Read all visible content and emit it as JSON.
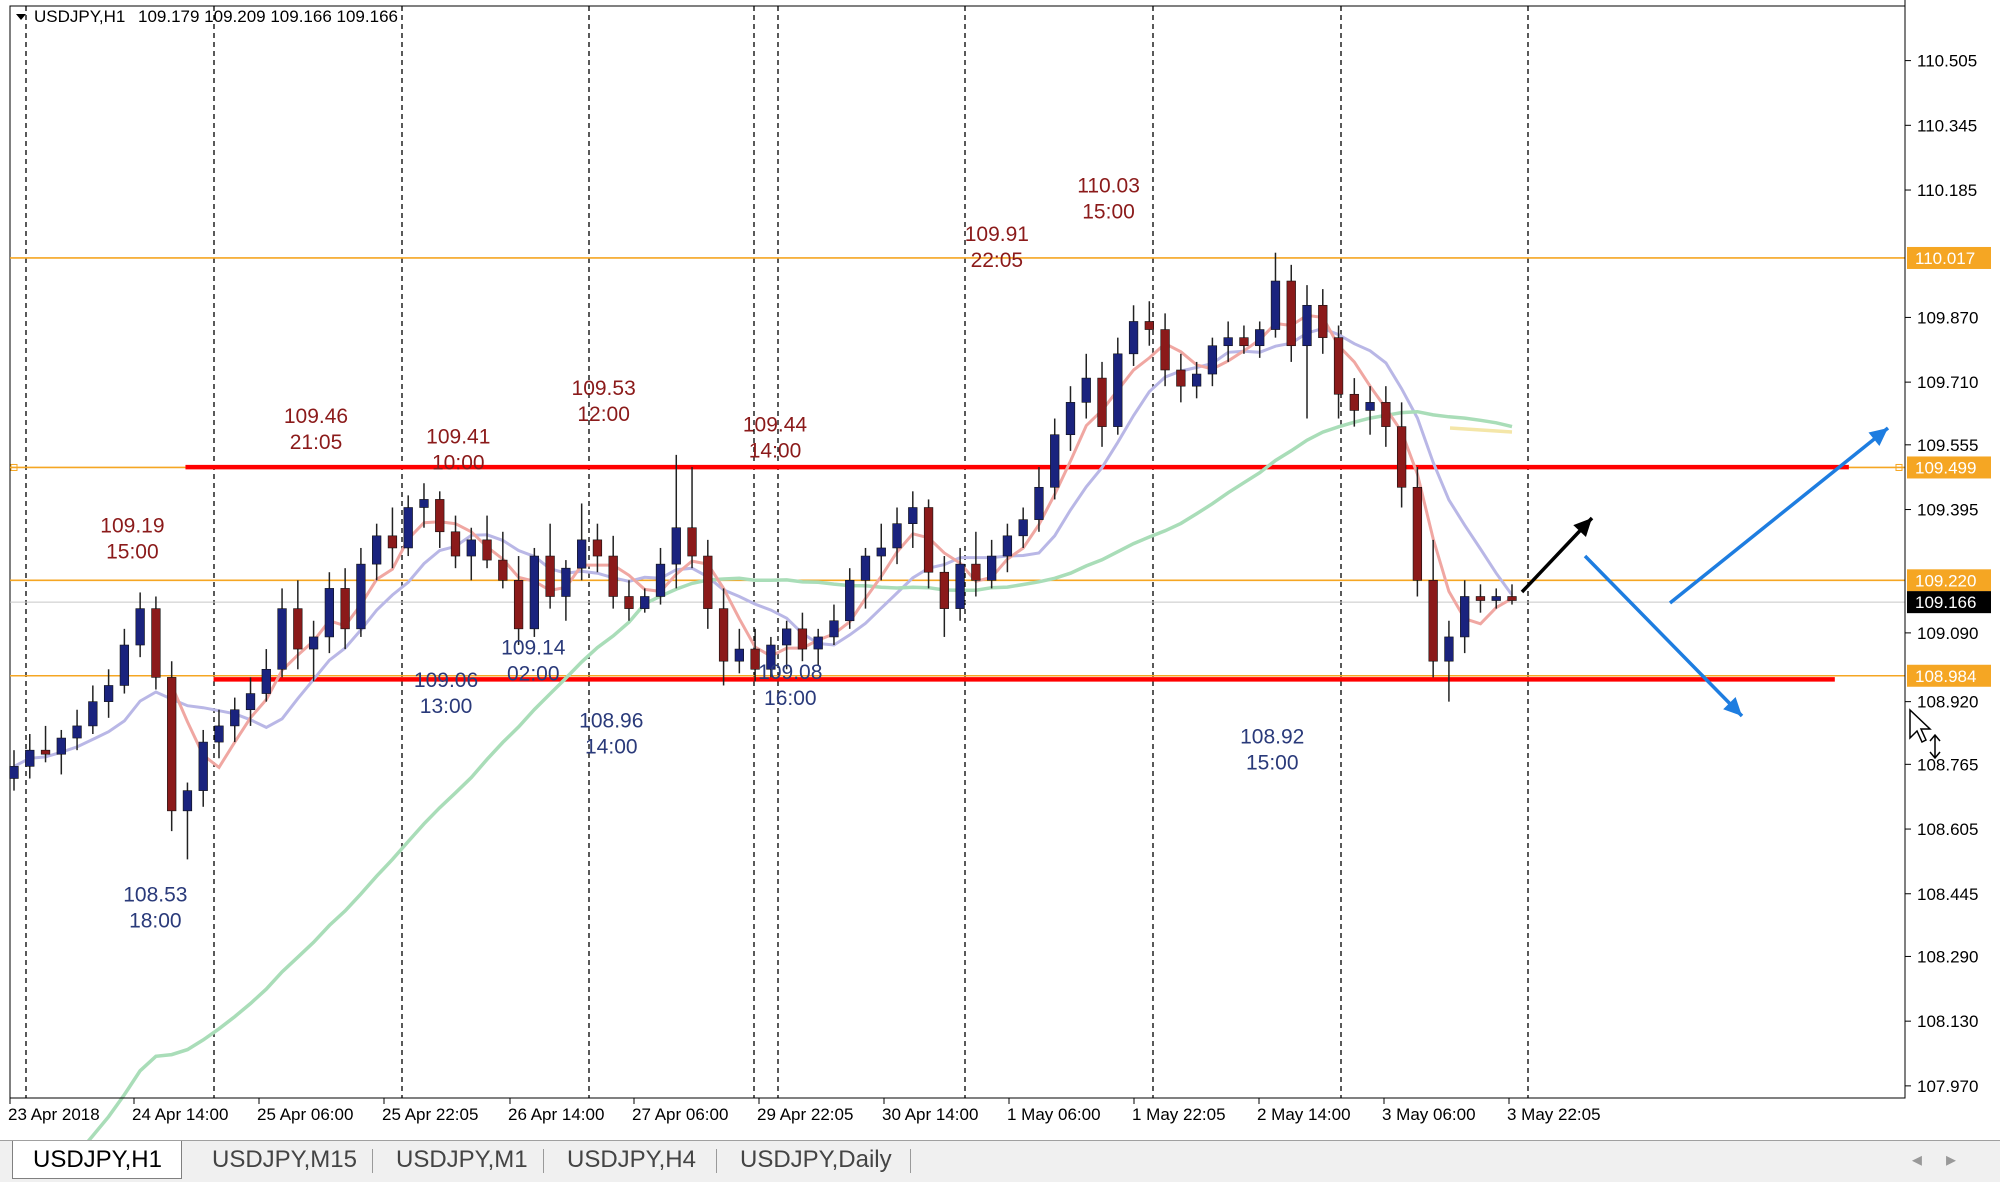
{
  "header": {
    "symbol": "USDJPY,H1",
    "ohlc": "109.179 109.209 109.166 109.166"
  },
  "tabs": [
    {
      "label": "USDJPY,H1",
      "active": true
    },
    {
      "label": "USDJPY,M15",
      "active": false
    },
    {
      "label": "USDJPY,M1",
      "active": false
    },
    {
      "label": "USDJPY,H4",
      "active": false
    },
    {
      "label": "USDJPY,Daily",
      "active": false
    }
  ],
  "colors": {
    "candle_up": "#1a237e",
    "candle_down": "#8b1a1a",
    "level_line": "#f5a623",
    "support_resistance": "#ff0000",
    "arrow_blue": "#1e7de0",
    "arrow_black": "#000000",
    "annotation_high": "#8b1a1a",
    "annotation_low": "#2a3a7a",
    "ma_fast": "#b9b7e6",
    "ma_slow": "#a9ddb8",
    "ma_red": "#f0a7a2",
    "ma_yellow": "#f4e6a8"
  },
  "chart_data": {
    "type": "candlestick",
    "symbol": "USDJPY",
    "timeframe": "H1",
    "ylim": [
      107.94,
      110.64
    ],
    "yticks": [
      110.505,
      110.345,
      110.185,
      109.87,
      109.71,
      109.555,
      109.395,
      109.09,
      108.92,
      108.765,
      108.605,
      108.445,
      108.29,
      108.13,
      107.97
    ],
    "xticks": [
      "23 Apr 2018",
      "24 Apr 14:00",
      "25 Apr 06:00",
      "25 Apr 22:05",
      "26 Apr 14:00",
      "27 Apr 06:00",
      "29 Apr 22:05",
      "30 Apr 14:00",
      "1 May 06:00",
      "1 May 22:05",
      "2 May 14:00",
      "3 May 06:00",
      "3 May 22:05"
    ],
    "horizontal_levels": [
      {
        "value": 110.017,
        "label": "110.017"
      },
      {
        "value": 109.499,
        "label": "109.499"
      },
      {
        "value": 109.22,
        "label": "109.220"
      },
      {
        "value": 108.984,
        "label": "108.984"
      }
    ],
    "current_price": {
      "value": 109.166,
      "label": "109.166"
    },
    "support_resistance": [
      {
        "value": 109.5,
        "from": 0.125,
        "to": 1.31
      },
      {
        "value": 108.975,
        "from": 0.145,
        "to": 1.3
      }
    ],
    "annotations": [
      {
        "type": "high",
        "price": "109.19",
        "time": "15:00",
        "x": 0.08,
        "y": 109.19
      },
      {
        "type": "low",
        "price": "108.53",
        "time": "18:00",
        "x": 0.095,
        "y": 108.53
      },
      {
        "type": "high",
        "price": "109.46",
        "time": "21:05",
        "x": 0.2,
        "y": 109.46
      },
      {
        "type": "high",
        "price": "109.41",
        "time": "10:00",
        "x": 0.293,
        "y": 109.41
      },
      {
        "type": "low",
        "price": "109.06",
        "time": "13:00",
        "x": 0.285,
        "y": 109.06
      },
      {
        "type": "low",
        "price": "109.14",
        "time": "02:00",
        "x": 0.342,
        "y": 109.14
      },
      {
        "type": "high",
        "price": "109.53",
        "time": "12:00",
        "x": 0.388,
        "y": 109.53
      },
      {
        "type": "low",
        "price": "108.96",
        "time": "14:00",
        "x": 0.393,
        "y": 108.96
      },
      {
        "type": "high",
        "price": "109.44",
        "time": "14:00",
        "x": 0.5,
        "y": 109.44
      },
      {
        "type": "low",
        "price": "109.08",
        "time": "16:00",
        "x": 0.51,
        "y": 109.08
      },
      {
        "type": "high",
        "price": "109.91",
        "time": "22:05",
        "x": 0.645,
        "y": 109.91
      },
      {
        "type": "high",
        "price": "110.03",
        "time": "15:00",
        "x": 0.718,
        "y": 110.03
      },
      {
        "type": "low",
        "price": "108.92",
        "time": "15:00",
        "x": 0.825,
        "y": 108.92
      }
    ],
    "candles": [
      [
        108.73,
        108.8,
        108.7,
        108.76
      ],
      [
        108.76,
        108.84,
        108.73,
        108.8
      ],
      [
        108.8,
        108.86,
        108.77,
        108.79
      ],
      [
        108.79,
        108.85,
        108.74,
        108.83
      ],
      [
        108.83,
        108.9,
        108.8,
        108.86
      ],
      [
        108.86,
        108.96,
        108.84,
        108.92
      ],
      [
        108.92,
        109.0,
        108.88,
        108.96
      ],
      [
        108.96,
        109.1,
        108.94,
        109.06
      ],
      [
        109.06,
        109.19,
        109.03,
        109.15
      ],
      [
        109.15,
        109.18,
        108.95,
        108.98
      ],
      [
        108.98,
        109.02,
        108.6,
        108.65
      ],
      [
        108.65,
        108.72,
        108.53,
        108.7
      ],
      [
        108.7,
        108.85,
        108.66,
        108.82
      ],
      [
        108.82,
        108.9,
        108.78,
        108.86
      ],
      [
        108.86,
        108.93,
        108.82,
        108.9
      ],
      [
        108.9,
        108.98,
        108.86,
        108.94
      ],
      [
        108.94,
        109.05,
        108.92,
        109.0
      ],
      [
        109.0,
        109.2,
        108.98,
        109.15
      ],
      [
        109.15,
        109.22,
        109.0,
        109.05
      ],
      [
        109.05,
        109.12,
        108.97,
        109.08
      ],
      [
        109.08,
        109.24,
        109.04,
        109.2
      ],
      [
        109.2,
        109.25,
        109.05,
        109.1
      ],
      [
        109.1,
        109.3,
        109.08,
        109.26
      ],
      [
        109.26,
        109.36,
        109.22,
        109.33
      ],
      [
        109.33,
        109.4,
        109.25,
        109.3
      ],
      [
        109.3,
        109.43,
        109.28,
        109.4
      ],
      [
        109.4,
        109.46,
        109.35,
        109.42
      ],
      [
        109.42,
        109.44,
        109.3,
        109.34
      ],
      [
        109.34,
        109.38,
        109.25,
        109.28
      ],
      [
        109.28,
        109.35,
        109.22,
        109.32
      ],
      [
        109.32,
        109.38,
        109.25,
        109.27
      ],
      [
        109.27,
        109.34,
        109.2,
        109.22
      ],
      [
        109.22,
        109.28,
        109.06,
        109.1
      ],
      [
        109.1,
        109.3,
        109.08,
        109.28
      ],
      [
        109.28,
        109.36,
        109.15,
        109.18
      ],
      [
        109.18,
        109.27,
        109.12,
        109.25
      ],
      [
        109.25,
        109.41,
        109.22,
        109.32
      ],
      [
        109.32,
        109.36,
        109.24,
        109.28
      ],
      [
        109.28,
        109.33,
        109.15,
        109.18
      ],
      [
        109.18,
        109.22,
        109.12,
        109.15
      ],
      [
        109.15,
        109.2,
        109.14,
        109.18
      ],
      [
        109.18,
        109.3,
        109.16,
        109.26
      ],
      [
        109.26,
        109.53,
        109.2,
        109.35
      ],
      [
        109.35,
        109.5,
        109.25,
        109.28
      ],
      [
        109.28,
        109.32,
        109.1,
        109.15
      ],
      [
        109.15,
        109.2,
        108.96,
        109.02
      ],
      [
        109.02,
        109.1,
        108.99,
        109.05
      ],
      [
        109.05,
        109.1,
        108.97,
        109.0
      ],
      [
        109.0,
        109.08,
        108.98,
        109.06
      ],
      [
        109.06,
        109.12,
        109.0,
        109.1
      ],
      [
        109.1,
        109.14,
        109.02,
        109.05
      ],
      [
        109.05,
        109.1,
        109.01,
        109.08
      ],
      [
        109.08,
        109.16,
        109.06,
        109.12
      ],
      [
        109.12,
        109.25,
        109.1,
        109.22
      ],
      [
        109.22,
        109.3,
        109.15,
        109.28
      ],
      [
        109.28,
        109.36,
        109.22,
        109.3
      ],
      [
        109.3,
        109.4,
        109.26,
        109.36
      ],
      [
        109.36,
        109.44,
        109.3,
        109.4
      ],
      [
        109.4,
        109.42,
        109.2,
        109.24
      ],
      [
        109.24,
        109.28,
        109.08,
        109.15
      ],
      [
        109.15,
        109.3,
        109.12,
        109.26
      ],
      [
        109.26,
        109.34,
        109.18,
        109.22
      ],
      [
        109.22,
        109.32,
        109.2,
        109.28
      ],
      [
        109.28,
        109.36,
        109.24,
        109.33
      ],
      [
        109.33,
        109.4,
        109.3,
        109.37
      ],
      [
        109.37,
        109.5,
        109.34,
        109.45
      ],
      [
        109.45,
        109.62,
        109.42,
        109.58
      ],
      [
        109.58,
        109.7,
        109.54,
        109.66
      ],
      [
        109.66,
        109.78,
        109.62,
        109.72
      ],
      [
        109.72,
        109.76,
        109.55,
        109.6
      ],
      [
        109.6,
        109.82,
        109.58,
        109.78
      ],
      [
        109.78,
        109.9,
        109.75,
        109.86
      ],
      [
        109.86,
        109.91,
        109.8,
        109.84
      ],
      [
        109.84,
        109.88,
        109.7,
        109.74
      ],
      [
        109.74,
        109.78,
        109.66,
        109.7
      ],
      [
        109.7,
        109.76,
        109.67,
        109.73
      ],
      [
        109.73,
        109.82,
        109.7,
        109.8
      ],
      [
        109.8,
        109.86,
        109.76,
        109.82
      ],
      [
        109.82,
        109.85,
        109.78,
        109.8
      ],
      [
        109.8,
        109.86,
        109.77,
        109.84
      ],
      [
        109.84,
        110.03,
        109.82,
        109.96
      ],
      [
        109.96,
        110.0,
        109.76,
        109.8
      ],
      [
        109.8,
        109.95,
        109.62,
        109.9
      ],
      [
        109.9,
        109.94,
        109.78,
        109.82
      ],
      [
        109.82,
        109.85,
        109.62,
        109.68
      ],
      [
        109.68,
        109.72,
        109.6,
        109.64
      ],
      [
        109.64,
        109.7,
        109.58,
        109.66
      ],
      [
        109.66,
        109.7,
        109.55,
        109.6
      ],
      [
        109.6,
        109.66,
        109.4,
        109.45
      ],
      [
        109.45,
        109.5,
        109.18,
        109.22
      ],
      [
        109.22,
        109.32,
        108.98,
        109.02
      ],
      [
        109.02,
        109.12,
        108.92,
        109.08
      ],
      [
        109.08,
        109.22,
        109.04,
        109.18
      ],
      [
        109.18,
        109.21,
        109.14,
        109.17
      ],
      [
        109.17,
        109.2,
        109.15,
        109.18
      ],
      [
        109.18,
        109.21,
        109.16,
        109.17
      ]
    ]
  }
}
